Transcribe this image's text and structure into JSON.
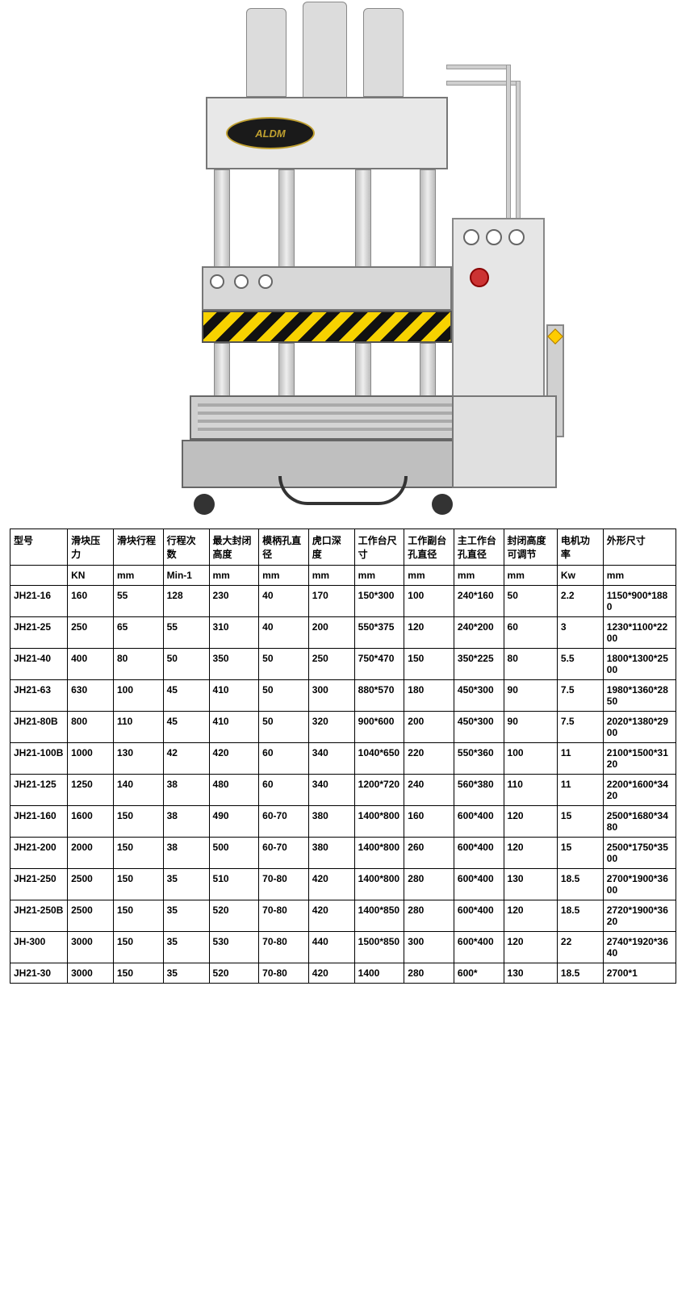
{
  "brand_label": "ALDM",
  "table": {
    "border_color": "#000000",
    "text_color": "#000000",
    "font_size_pt": 9,
    "columns": [
      "型号",
      "滑块压力",
      "滑块行程",
      "行程次数",
      "最大封闭高度",
      "模柄孔直径",
      "虎口深度",
      "工作台尺寸",
      "工作副台孔直径",
      "主工作台孔直径",
      "封闭高度可调节",
      "电机功率",
      "外形尺寸"
    ],
    "units": [
      "",
      "KN",
      "mm",
      "Min-1",
      "mm",
      "mm",
      "mm",
      "mm",
      "mm",
      "mm",
      "mm",
      "Kw",
      "mm"
    ],
    "rows": [
      [
        "JH21-16",
        "160",
        "55",
        "128",
        "230",
        "40",
        "170",
        "150*300",
        "100",
        "240*160",
        "50",
        "2.2",
        "1150*900*1880"
      ],
      [
        "JH21-25",
        "250",
        "65",
        "55",
        "310",
        "40",
        "200",
        "550*375",
        "120",
        "240*200",
        "60",
        "3",
        "1230*1100*2200"
      ],
      [
        "JH21-40",
        "400",
        "80",
        "50",
        "350",
        "50",
        "250",
        "750*470",
        "150",
        "350*225",
        "80",
        "5.5",
        "1800*1300*2500"
      ],
      [
        "JH21-63",
        "630",
        "100",
        "45",
        "410",
        "50",
        "300",
        "880*570",
        "180",
        "450*300",
        "90",
        "7.5",
        "1980*1360*2850"
      ],
      [
        "JH21-80B",
        "800",
        "110",
        "45",
        "410",
        "50",
        "320",
        "900*600",
        "200",
        "450*300",
        "90",
        "7.5",
        "2020*1380*2900"
      ],
      [
        "JH21-100B",
        "1000",
        "130",
        "42",
        "420",
        "60",
        "340",
        "1040*650",
        "220",
        "550*360",
        "100",
        "11",
        "2100*1500*3120"
      ],
      [
        "JH21-125",
        "1250",
        "140",
        "38",
        "480",
        "60",
        "340",
        "1200*720",
        "240",
        "560*380",
        "110",
        "11",
        "2200*1600*3420"
      ],
      [
        "JH21-160",
        "1600",
        "150",
        "38",
        "490",
        "60-70",
        "380",
        "1400*800",
        "160",
        "600*400",
        "120",
        "15",
        "2500*1680*3480"
      ],
      [
        "JH21-200",
        "2000",
        "150",
        "38",
        "500",
        "60-70",
        "380",
        "1400*800",
        "260",
        "600*400",
        "120",
        "15",
        "2500*1750*3500"
      ],
      [
        "JH21-250",
        "2500",
        "150",
        "35",
        "510",
        "70-80",
        "420",
        "1400*800",
        "280",
        "600*400",
        "130",
        "18.5",
        "2700*1900*3600"
      ],
      [
        "JH21-250B",
        "2500",
        "150",
        "35",
        "520",
        "70-80",
        "420",
        "1400*850",
        "280",
        "600*400",
        "120",
        "18.5",
        "2720*1900*3620"
      ],
      [
        "JH-300",
        "3000",
        "150",
        "35",
        "530",
        "70-80",
        "440",
        "1500*850",
        "300",
        "600*400",
        "120",
        "22",
        "2740*1920*3640"
      ],
      [
        "JH21-30",
        "3000",
        "150",
        "35",
        "520",
        "70-80",
        "420",
        "1400",
        "280",
        "600*",
        "130",
        "18.5",
        "2700*1"
      ]
    ]
  }
}
